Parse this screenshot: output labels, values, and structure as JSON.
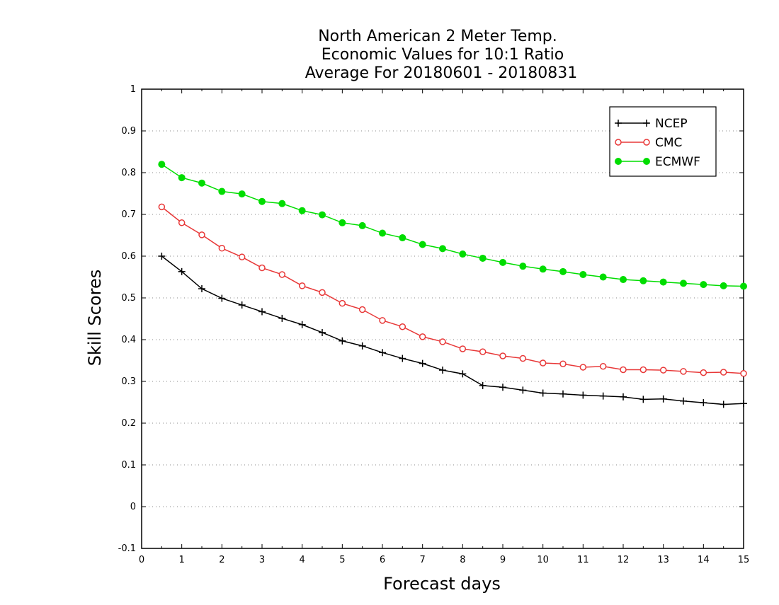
{
  "chart_data": {
    "type": "line",
    "title": [
      "North American 2 Meter Temp.",
      "Economic Values for 10:1 Ratio",
      "Average For 20180601 - 20180831"
    ],
    "xlabel": "Forecast days",
    "ylabel": "Skill Scores",
    "xlim": [
      0,
      15
    ],
    "ylim": [
      -0.1,
      1
    ],
    "xticks": [
      "0",
      "1",
      "2",
      "3",
      "4",
      "5",
      "6",
      "7",
      "8",
      "9",
      "10",
      "11",
      "12",
      "13",
      "14",
      "15"
    ],
    "yticks": [
      "-0.1",
      "0",
      "0.1",
      "0.2",
      "0.3",
      "0.4",
      "0.5",
      "0.6",
      "0.7",
      "0.8",
      "0.9",
      "1"
    ],
    "grid": true,
    "legend_position": "top-right",
    "x": [
      0.5,
      1,
      1.5,
      2,
      2.5,
      3,
      3.5,
      4,
      4.5,
      5,
      5.5,
      6,
      6.5,
      7,
      7.5,
      8,
      8.5,
      9,
      9.5,
      10,
      10.5,
      11,
      11.5,
      12,
      12.5,
      13,
      13.5,
      14,
      14.5,
      15
    ],
    "series": [
      {
        "name": "NCEP",
        "color": "#000000",
        "marker": "plus",
        "values": [
          0.6,
          0.563,
          0.522,
          0.499,
          0.483,
          0.467,
          0.451,
          0.436,
          0.417,
          0.397,
          0.385,
          0.369,
          0.355,
          0.343,
          0.327,
          0.318,
          0.29,
          0.286,
          0.279,
          0.272,
          0.27,
          0.267,
          0.265,
          0.263,
          0.257,
          0.258,
          0.253,
          0.249,
          0.245,
          0.247
        ]
      },
      {
        "name": "CMC",
        "color": "#e83838",
        "marker": "open-circle",
        "values": [
          0.718,
          0.68,
          0.651,
          0.619,
          0.598,
          0.572,
          0.556,
          0.529,
          0.513,
          0.487,
          0.472,
          0.446,
          0.431,
          0.407,
          0.395,
          0.378,
          0.371,
          0.361,
          0.355,
          0.344,
          0.342,
          0.334,
          0.336,
          0.328,
          0.328,
          0.327,
          0.324,
          0.321,
          0.322,
          0.319
        ]
      },
      {
        "name": "ECMWF",
        "color": "#00dd00",
        "marker": "filled-circle",
        "values": [
          0.82,
          0.788,
          0.775,
          0.755,
          0.749,
          0.731,
          0.726,
          0.709,
          0.699,
          0.68,
          0.673,
          0.655,
          0.644,
          0.628,
          0.618,
          0.605,
          0.595,
          0.585,
          0.576,
          0.569,
          0.563,
          0.556,
          0.55,
          0.544,
          0.541,
          0.538,
          0.535,
          0.532,
          0.529,
          0.528
        ]
      }
    ]
  }
}
